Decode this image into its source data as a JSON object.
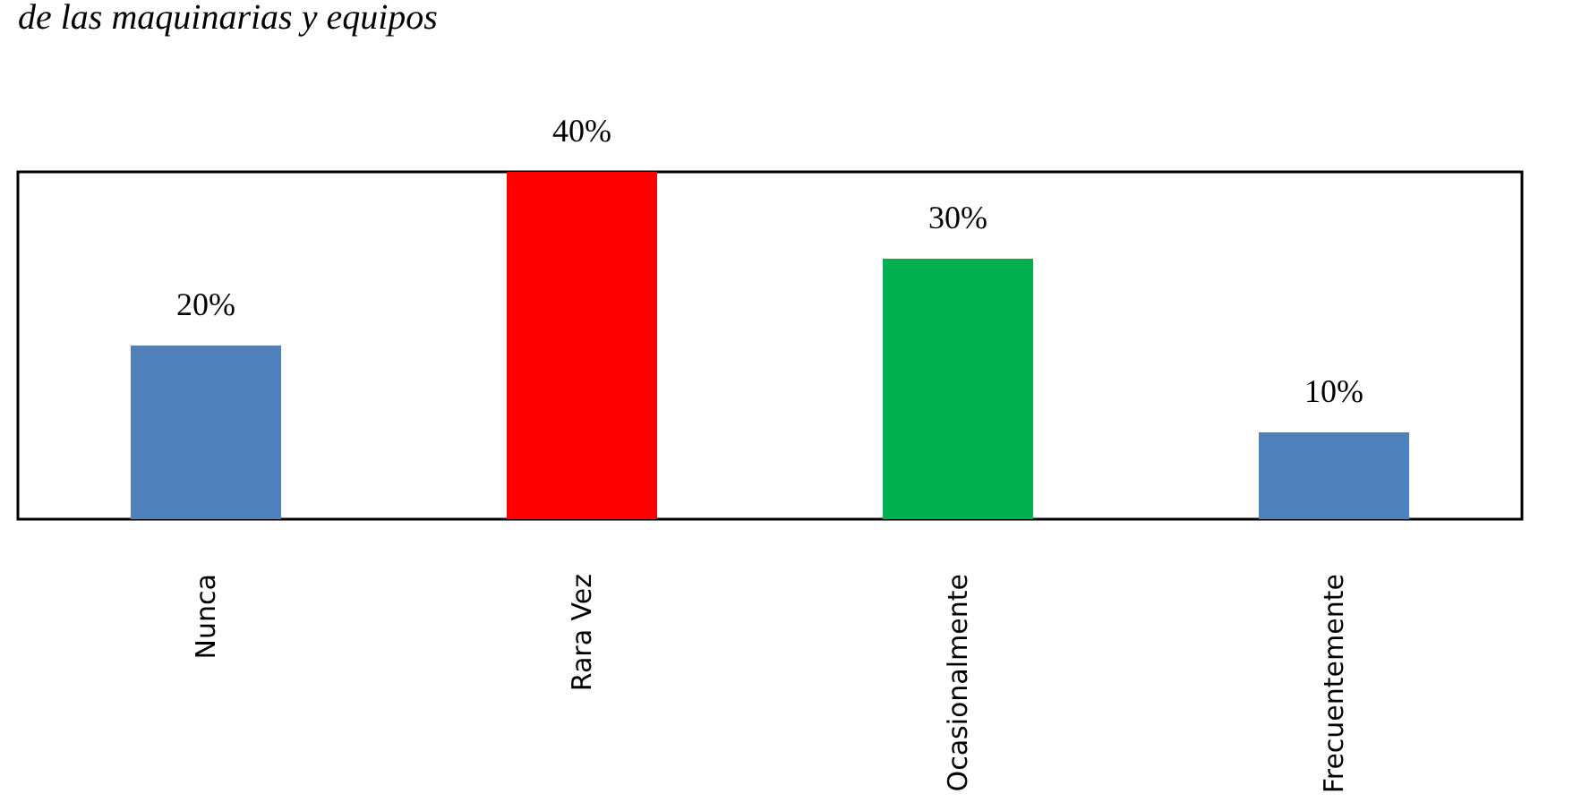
{
  "chart_data": {
    "type": "bar",
    "title": "de las maquinarias y equipos",
    "categories": [
      "Nunca",
      "Rara Vez",
      "Ocasionalmente",
      "Frecuentemente"
    ],
    "values": [
      20,
      40,
      30,
      10
    ],
    "colors": [
      "#4f81bd",
      "#ff0000",
      "#00b050",
      "#4f81bd"
    ],
    "value_labels": [
      "20%",
      "40%",
      "30%",
      "10%"
    ]
  }
}
